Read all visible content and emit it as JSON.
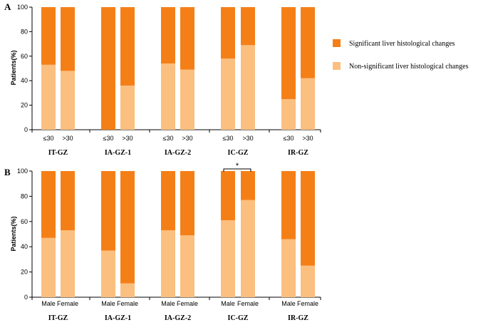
{
  "colors": {
    "significant": "#f57f17",
    "non_significant": "#fbbf80",
    "axis": "#000000"
  },
  "legend": {
    "significant": "Significant liver histological changes",
    "non_significant": "Non-significant liver histological changes"
  },
  "chart_data": [
    {
      "type": "bar",
      "stacked": true,
      "panel_label": "A",
      "ylabel": "Patients(%)",
      "ylim": [
        0,
        100
      ],
      "yticks": [
        "0",
        "20",
        "40",
        "60",
        "80",
        "100"
      ],
      "groups": [
        "IT-GZ",
        "IA-GZ-1",
        "IA-GZ-2",
        "IC-GZ",
        "IR-GZ"
      ],
      "subcategories": [
        "≤30",
        ">30"
      ],
      "series": [
        {
          "name": "Non-significant liver histological changes",
          "values": [
            [
              53,
              48
            ],
            [
              0,
              36
            ],
            [
              54,
              49
            ],
            [
              58,
              69
            ],
            [
              25,
              42
            ]
          ]
        },
        {
          "name": "Significant liver histological changes",
          "values": [
            [
              47,
              52
            ],
            [
              100,
              64
            ],
            [
              46,
              51
            ],
            [
              42,
              31
            ],
            [
              75,
              58
            ]
          ]
        }
      ],
      "annotations": []
    },
    {
      "type": "bar",
      "stacked": true,
      "panel_label": "B",
      "ylabel": "Patients(%)",
      "ylim": [
        0,
        100
      ],
      "yticks": [
        "0",
        "20",
        "40",
        "60",
        "80",
        "100"
      ],
      "groups": [
        "IT-GZ",
        "IA-GZ-1",
        "IA-GZ-2",
        "IC-GZ",
        "IR-GZ"
      ],
      "subcategories": [
        "Male",
        "Female"
      ],
      "series": [
        {
          "name": "Non-significant liver histological changes",
          "values": [
            [
              47,
              53
            ],
            [
              37,
              11
            ],
            [
              53,
              49
            ],
            [
              61,
              77
            ],
            [
              46,
              25
            ]
          ]
        },
        {
          "name": "Significant liver histological changes",
          "values": [
            [
              53,
              47
            ],
            [
              63,
              89
            ],
            [
              47,
              51
            ],
            [
              39,
              23
            ],
            [
              54,
              75
            ]
          ]
        }
      ],
      "annotations": [
        {
          "group": "IC-GZ",
          "text": "*"
        }
      ]
    }
  ]
}
